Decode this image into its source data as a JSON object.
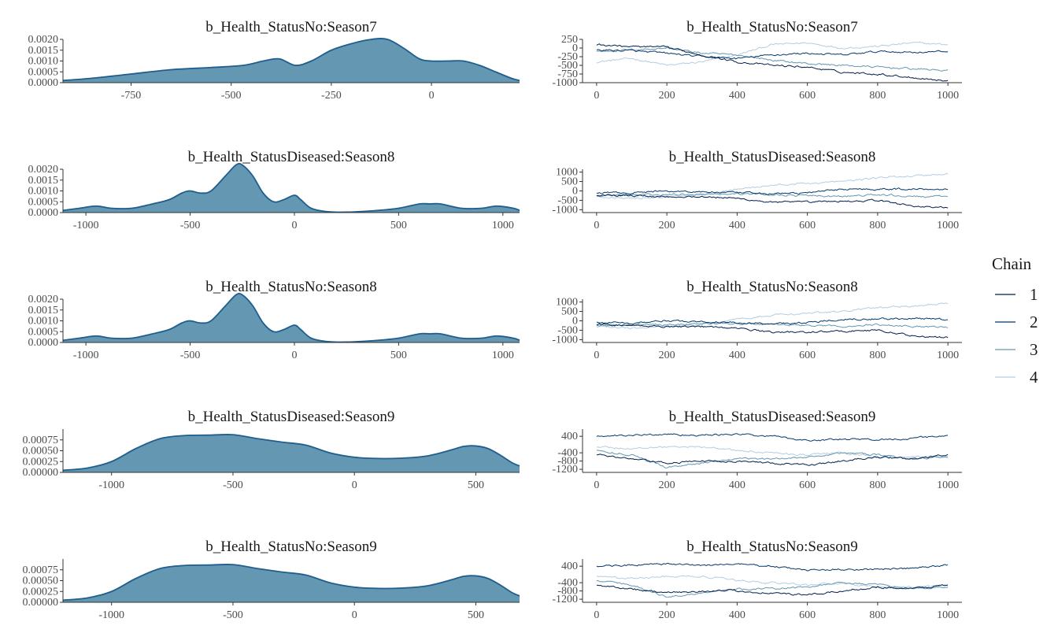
{
  "colors": {
    "density_fill": "#6497b1",
    "density_line": "#1f5e8e",
    "axis": "#333333",
    "chain_1": "#011f4b",
    "chain_2": "#03396c",
    "chain_3": "#6497b1",
    "chain_4": "#b3cde0"
  },
  "legend": {
    "title": "Chain",
    "placement": "right",
    "entries": [
      "1",
      "2",
      "3",
      "4"
    ]
  },
  "chart_data": [
    {
      "type": "area",
      "title": "b_Health_StatusNo:Season7",
      "xlim": [
        -920,
        220
      ],
      "ylim": [
        0,
        0.002
      ],
      "xticks": [
        -750,
        -500,
        -250,
        0
      ],
      "yticks": [
        0,
        0.0005,
        0.001,
        0.0015,
        0.002
      ],
      "ytick_labels": [
        "0.0000",
        "0.0005",
        "0.0010",
        "0.0015",
        "0.0020"
      ],
      "x": [
        -920,
        -850,
        -750,
        -650,
        -550,
        -470,
        -420,
        -380,
        -340,
        -300,
        -250,
        -200,
        -150,
        -110,
        -70,
        -30,
        0,
        40,
        80,
        120,
        160,
        200,
        220
      ],
      "y": [
        0.0001,
        0.0002,
        0.0004,
        0.0006,
        0.0007,
        0.0008,
        0.001,
        0.0011,
        0.0008,
        0.001,
        0.0015,
        0.0018,
        0.002,
        0.002,
        0.0016,
        0.0011,
        0.001,
        0.001,
        0.001,
        0.0008,
        0.0005,
        0.0002,
        0.0001
      ]
    },
    {
      "type": "line",
      "title": "b_Health_StatusNo:Season7",
      "xlim": [
        -40,
        1040
      ],
      "ylim": [
        -1000,
        250
      ],
      "xticks": [
        0,
        200,
        400,
        600,
        800,
        1000
      ],
      "yticks": [
        250,
        0,
        -250,
        -500,
        -750,
        -1000
      ],
      "ytick_labels": [
        "250",
        "0",
        "-250",
        "-500",
        "-750",
        "-1000"
      ],
      "x": [
        0,
        100,
        200,
        300,
        400,
        500,
        600,
        700,
        800,
        900,
        1000
      ],
      "series": [
        {
          "name": "1",
          "values": [
            100,
            40,
            20,
            -200,
            -400,
            -500,
            -550,
            -700,
            -750,
            -850,
            -950
          ]
        },
        {
          "name": "2",
          "values": [
            -50,
            -80,
            -150,
            -250,
            -300,
            -200,
            -150,
            -200,
            -100,
            -120,
            -100
          ]
        },
        {
          "name": "3",
          "values": [
            -100,
            -50,
            0,
            -150,
            -200,
            -350,
            -450,
            -500,
            -550,
            -600,
            -650
          ]
        },
        {
          "name": "4",
          "values": [
            -400,
            -300,
            -500,
            -400,
            -200,
            100,
            150,
            0,
            50,
            150,
            100
          ]
        }
      ]
    },
    {
      "type": "area",
      "title": "b_Health_StatusDiseased:Season8",
      "xlim": [
        -1110,
        1080
      ],
      "ylim": [
        0,
        0.002
      ],
      "xticks": [
        -1000,
        -500,
        0,
        500,
        1000
      ],
      "yticks": [
        0,
        0.0005,
        0.001,
        0.0015,
        0.002
      ],
      "ytick_labels": [
        "0.0000",
        "0.0005",
        "0.0010",
        "0.0015",
        "0.0020"
      ],
      "x": [
        -1110,
        -1030,
        -950,
        -880,
        -780,
        -680,
        -600,
        -540,
        -500,
        -450,
        -400,
        -330,
        -280,
        -250,
        -200,
        -150,
        -100,
        -50,
        0,
        30,
        80,
        150,
        250,
        400,
        500,
        600,
        650,
        700,
        800,
        900,
        970,
        1050,
        1080
      ],
      "y": [
        0.0001,
        0.0002,
        0.0003,
        0.0002,
        0.0002,
        0.0004,
        0.0006,
        0.0009,
        0.001,
        0.0009,
        0.001,
        0.0017,
        0.0022,
        0.0022,
        0.0017,
        0.0009,
        0.0005,
        0.0006,
        0.0008,
        0.0006,
        0.0002,
        5e-05,
        2e-05,
        0.0001,
        0.0002,
        0.0004,
        0.0004,
        0.0004,
        0.0002,
        0.0002,
        0.0003,
        0.0002,
        0.0001
      ]
    },
    {
      "type": "line",
      "title": "b_Health_StatusDiseased:Season8",
      "xlim": [
        -40,
        1040
      ],
      "ylim": [
        -1150,
        1150
      ],
      "xticks": [
        0,
        200,
        400,
        600,
        800,
        1000
      ],
      "yticks": [
        1000,
        500,
        0,
        -500,
        -1000
      ],
      "ytick_labels": [
        "1000",
        "500",
        "0",
        "-500",
        "-1000"
      ],
      "x": [
        0,
        100,
        200,
        300,
        400,
        500,
        600,
        700,
        800,
        900,
        1000
      ],
      "series": [
        {
          "name": "1",
          "values": [
            -200,
            -250,
            -300,
            -300,
            -400,
            -600,
            -600,
            -550,
            -500,
            -800,
            -900
          ]
        },
        {
          "name": "2",
          "values": [
            -100,
            -100,
            0,
            -50,
            -100,
            -150,
            -100,
            100,
            100,
            100,
            100
          ]
        },
        {
          "name": "3",
          "values": [
            -250,
            -200,
            -200,
            -150,
            -150,
            -200,
            -250,
            -300,
            -200,
            -300,
            -300
          ]
        },
        {
          "name": "4",
          "values": [
            -300,
            -400,
            -300,
            -200,
            100,
            300,
            400,
            500,
            700,
            800,
            900
          ]
        }
      ]
    },
    {
      "type": "area",
      "title": "b_Health_StatusNo:Season8",
      "xlim": [
        -1110,
        1080
      ],
      "ylim": [
        0,
        0.002
      ],
      "xticks": [
        -1000,
        -500,
        0,
        500,
        1000
      ],
      "yticks": [
        0,
        0.0005,
        0.001,
        0.0015,
        0.002
      ],
      "ytick_labels": [
        "0.0000",
        "0.0005",
        "0.0010",
        "0.0015",
        "0.0020"
      ],
      "x": [
        -1110,
        -1030,
        -950,
        -880,
        -780,
        -680,
        -600,
        -540,
        -500,
        -450,
        -400,
        -330,
        -280,
        -250,
        -200,
        -150,
        -100,
        -50,
        0,
        30,
        80,
        150,
        250,
        400,
        500,
        600,
        650,
        700,
        800,
        900,
        970,
        1050,
        1080
      ],
      "y": [
        0.0001,
        0.0002,
        0.0003,
        0.0002,
        0.0002,
        0.0004,
        0.0006,
        0.0009,
        0.001,
        0.0009,
        0.001,
        0.0017,
        0.0022,
        0.0022,
        0.0017,
        0.0009,
        0.0005,
        0.0006,
        0.0008,
        0.0006,
        0.0002,
        5e-05,
        2e-05,
        0.0001,
        0.0002,
        0.0004,
        0.0004,
        0.0004,
        0.0002,
        0.0002,
        0.0003,
        0.0002,
        0.0001
      ]
    },
    {
      "type": "line",
      "title": "b_Health_StatusNo:Season8",
      "xlim": [
        -40,
        1040
      ],
      "ylim": [
        -1150,
        1150
      ],
      "xticks": [
        0,
        200,
        400,
        600,
        800,
        1000
      ],
      "yticks": [
        1000,
        500,
        0,
        -500,
        -1000
      ],
      "ytick_labels": [
        "1000",
        "500",
        "0",
        "-500",
        "-1000"
      ],
      "x": [
        0,
        100,
        200,
        300,
        400,
        500,
        600,
        700,
        800,
        900,
        1000
      ],
      "series": [
        {
          "name": "1",
          "values": [
            -200,
            -250,
            -300,
            -300,
            -400,
            -600,
            -600,
            -550,
            -500,
            -800,
            -900
          ]
        },
        {
          "name": "2",
          "values": [
            -100,
            -100,
            0,
            -50,
            -100,
            -150,
            -100,
            100,
            100,
            100,
            100
          ]
        },
        {
          "name": "3",
          "values": [
            -250,
            -200,
            -200,
            -150,
            -150,
            -200,
            -250,
            -300,
            -200,
            -300,
            -300
          ]
        },
        {
          "name": "4",
          "values": [
            -300,
            -400,
            -300,
            -200,
            100,
            300,
            400,
            500,
            700,
            800,
            900
          ]
        }
      ]
    },
    {
      "type": "area",
      "title": "b_Health_StatusDiseased:Season9",
      "xlim": [
        -1200,
        680
      ],
      "ylim": [
        0,
        0.001
      ],
      "xticks": [
        -1000,
        -500,
        0,
        500
      ],
      "yticks": [
        0,
        0.00025,
        0.0005,
        0.00075
      ],
      "ytick_labels": [
        "0.00000",
        "0.00025",
        "0.00050",
        "0.00075"
      ],
      "x": [
        -1200,
        -1100,
        -1000,
        -900,
        -800,
        -700,
        -600,
        -500,
        -400,
        -300,
        -200,
        -100,
        0,
        100,
        200,
        300,
        400,
        450,
        500,
        550,
        600,
        650,
        680
      ],
      "y": [
        5e-05,
        0.0001,
        0.00025,
        0.00055,
        0.00078,
        0.00085,
        0.00086,
        0.00087,
        0.00078,
        0.0007,
        0.00063,
        0.00045,
        0.00035,
        0.00032,
        0.00033,
        0.00038,
        0.00052,
        0.0006,
        0.00061,
        0.00055,
        0.0004,
        0.00022,
        0.00015
      ]
    },
    {
      "type": "line",
      "title": "b_Health_StatusDiseased:Season9",
      "xlim": [
        -40,
        1040
      ],
      "ylim": [
        -1350,
        750
      ],
      "xticks": [
        0,
        200,
        400,
        600,
        800,
        1000
      ],
      "yticks": [
        400,
        -400,
        -800,
        -1200
      ],
      "ytick_labels": [
        "400",
        "-400",
        "-800",
        "-1200"
      ],
      "x": [
        0,
        100,
        200,
        300,
        400,
        500,
        600,
        700,
        800,
        900,
        1000
      ],
      "series": [
        {
          "name": "1",
          "values": [
            -500,
            -700,
            -900,
            -800,
            -800,
            -900,
            -1000,
            -800,
            -600,
            -700,
            -500
          ]
        },
        {
          "name": "2",
          "values": [
            400,
            450,
            500,
            450,
            500,
            400,
            200,
            250,
            250,
            300,
            450
          ]
        },
        {
          "name": "3",
          "values": [
            -300,
            -500,
            -1100,
            -900,
            -700,
            -700,
            -600,
            -400,
            -500,
            -700,
            -600
          ]
        },
        {
          "name": "4",
          "values": [
            -100,
            -200,
            -100,
            -100,
            -300,
            -400,
            -500,
            -400,
            -600,
            -600,
            -550
          ]
        }
      ]
    },
    {
      "type": "area",
      "title": "b_Health_StatusNo:Season9",
      "xlim": [
        -1200,
        680
      ],
      "ylim": [
        0,
        0.001
      ],
      "xticks": [
        -1000,
        -500,
        0,
        500
      ],
      "yticks": [
        0,
        0.00025,
        0.0005,
        0.00075
      ],
      "ytick_labels": [
        "0.00000",
        "0.00025",
        "0.00050",
        "0.00075"
      ],
      "x": [
        -1200,
        -1100,
        -1000,
        -900,
        -800,
        -700,
        -600,
        -500,
        -400,
        -300,
        -200,
        -100,
        0,
        100,
        200,
        300,
        400,
        450,
        500,
        550,
        600,
        650,
        680
      ],
      "y": [
        5e-05,
        0.0001,
        0.00025,
        0.00055,
        0.00078,
        0.00085,
        0.00086,
        0.00087,
        0.00078,
        0.0007,
        0.00063,
        0.00045,
        0.00035,
        0.00032,
        0.00033,
        0.00038,
        0.00052,
        0.0006,
        0.00061,
        0.00055,
        0.0004,
        0.00022,
        0.00015
      ]
    },
    {
      "type": "line",
      "title": "b_Health_StatusNo:Season9",
      "xlim": [
        -40,
        1040
      ],
      "ylim": [
        -1350,
        750
      ],
      "xticks": [
        0,
        200,
        400,
        600,
        800,
        1000
      ],
      "yticks": [
        400,
        -400,
        -800,
        -1200
      ],
      "ytick_labels": [
        "400",
        "-400",
        "-800",
        "-1200"
      ],
      "x": [
        0,
        100,
        200,
        300,
        400,
        500,
        600,
        700,
        800,
        900,
        1000
      ],
      "series": [
        {
          "name": "1",
          "values": [
            -500,
            -700,
            -900,
            -800,
            -800,
            -900,
            -1000,
            -800,
            -600,
            -700,
            -500
          ]
        },
        {
          "name": "2",
          "values": [
            400,
            450,
            500,
            450,
            500,
            400,
            200,
            250,
            250,
            300,
            450
          ]
        },
        {
          "name": "3",
          "values": [
            -300,
            -500,
            -1100,
            -900,
            -700,
            -700,
            -600,
            -400,
            -500,
            -700,
            -600
          ]
        },
        {
          "name": "4",
          "values": [
            -100,
            -200,
            -100,
            -100,
            -300,
            -400,
            -500,
            -400,
            -600,
            -600,
            -550
          ]
        }
      ]
    }
  ]
}
